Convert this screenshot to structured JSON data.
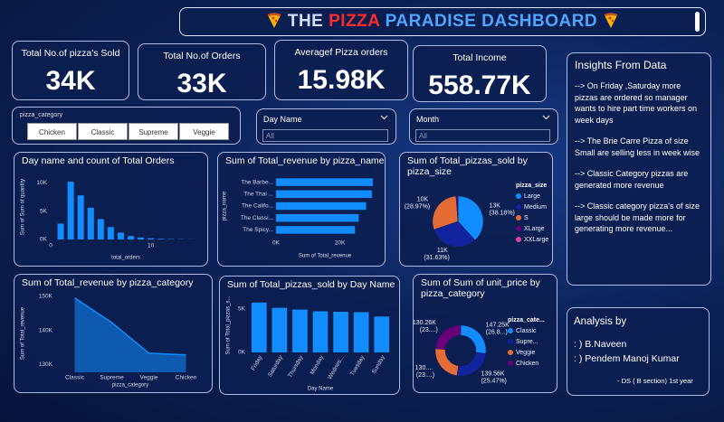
{
  "header": {
    "title_parts": [
      "THE",
      "PIZZA",
      "PARADISE DASHBOARD"
    ]
  },
  "kpis": [
    {
      "label": "Total No.of pizza's Sold",
      "value": "34K"
    },
    {
      "label": "Total No.of Orders",
      "value": "33K"
    },
    {
      "label": "Averagef Pizza orders",
      "value": "15.98K"
    },
    {
      "label": "Total Income",
      "value": "558.77K"
    }
  ],
  "slicers": {
    "pizza_category": {
      "label": "pizza_category",
      "options": [
        "Chicken",
        "Classic",
        "Supreme",
        "Veggie"
      ]
    },
    "day_name": {
      "label": "Day Name",
      "placeholder": "All"
    },
    "month": {
      "label": "Month",
      "placeholder": "All"
    }
  },
  "insights": {
    "title": "Insights From Data",
    "points": [
      "-->   On Friday ,Saturday  more pizzas are ordered  so manager wants to hire part time   workers on week days",
      "-->   The Brie Carre Pizza of size Small are selling less in week wise",
      "-->   Classic Category pizzas are generated more revenue",
      "-->   Classic category pizza's of size large should be made more for generating  more revenue..."
    ]
  },
  "analysis": {
    "title": "Analysis by",
    "authors": [
      ": ) B.Naveen",
      ": ) Pendem Manoj Kumar"
    ],
    "note": "- DS ( B section) 1st year"
  },
  "chart_data": [
    {
      "type": "bar",
      "title": "Day name and count of Total Orders",
      "x": [
        1,
        2,
        3,
        4,
        5,
        6,
        7,
        8,
        9,
        10,
        11,
        12,
        13,
        14
      ],
      "values": [
        2800,
        10200,
        7800,
        5600,
        3600,
        2200,
        1200,
        600,
        350,
        200,
        120,
        70,
        40,
        20
      ],
      "color": "#118dff",
      "xlim": [
        0,
        15
      ],
      "xticks": [
        0,
        10
      ],
      "ylim": [
        0,
        11500
      ],
      "yticks": [
        {
          "value": 0,
          "label": "0K"
        },
        {
          "value": 5000,
          "label": "5K"
        },
        {
          "value": 10000,
          "label": "10K"
        }
      ],
      "x_label": "total_orders",
      "y_label": "Sum of Sum of quantity"
    },
    {
      "type": "bar",
      "orientation": "horizontal",
      "title": "Sum of Total_revenue by pizza_name",
      "categories": [
        "The Barbe...",
        "The Thai ...",
        "The Califo...",
        "The Classi...",
        "The Spicy..."
      ],
      "values": [
        30300,
        30000,
        28200,
        25900,
        24700
      ],
      "color": "#118dff",
      "xlim": [
        0,
        30600
      ],
      "xticks": [
        {
          "value": 0,
          "label": "0K"
        },
        {
          "value": 20000,
          "label": "20K"
        }
      ],
      "x_label": "Sum of Total_revenue",
      "y_label": "pizza_name"
    },
    {
      "type": "pie",
      "donut": false,
      "title": "Sum of Total_pizzas_sold by pizza_size",
      "legend_title": "pizza_size",
      "categories": [
        "Large",
        "Medium",
        "S",
        "XLarge",
        "XXLarge"
      ],
      "values": [
        12981,
        10754,
        9850,
        405,
        10
      ],
      "value_labels": [
        "13K (38.18%)",
        "11K (31.63%)",
        "10K (28.97%)",
        null,
        null
      ],
      "colors": [
        "#118dff",
        "#12239e",
        "#e66c37",
        "#6b007b",
        "#e044a7"
      ]
    },
    {
      "type": "area",
      "title": "Sum of Total_revenue by pizza_category",
      "categories": [
        "Classic",
        "Supreme",
        "Veggie",
        "Chicken"
      ],
      "values": [
        149500,
        142300,
        133300,
        132800
      ],
      "color": "#118dff",
      "ylim": [
        127700,
        150500
      ],
      "yticks": [
        {
          "value": 130000,
          "label": "130K"
        },
        {
          "value": 140000,
          "label": "140K"
        },
        {
          "value": 150000,
          "label": "150K"
        }
      ],
      "x_label": "pizza_category",
      "y_label": "Sum of Total_revenue"
    },
    {
      "type": "bar",
      "title": "Sum of Total_pizzas_sold by Day Name",
      "categories": [
        "Friday",
        "Saturday",
        "Thursday",
        "Monday",
        "Wednes...",
        "Tuesday",
        "Sunday"
      ],
      "values": [
        5700,
        5100,
        4900,
        4700,
        4650,
        4600,
        4100
      ],
      "color": "#118dff",
      "ylim": [
        0,
        6200
      ],
      "yticks": [
        {
          "value": 0,
          "label": "0K"
        },
        {
          "value": 5000,
          "label": "5K"
        }
      ],
      "x_label": "Day Name",
      "y_label": "Sum of Total_pizzas_s..."
    },
    {
      "type": "pie",
      "donut": true,
      "title": "Sum of Sum of unit_price by pizza_category",
      "legend_title": "pizza_cate...",
      "categories": [
        "Classic",
        "Supre...",
        "Veggie",
        "Chicken"
      ],
      "values": [
        147250,
        139560,
        130830,
        130260
      ],
      "value_labels": [
        "147.25K (26.8...)",
        "139.56K (25.47%)",
        "130.... (23....)",
        "130.26K (23....)"
      ],
      "colors": [
        "#118dff",
        "#12239e",
        "#e66c37",
        "#6b007b"
      ]
    }
  ]
}
